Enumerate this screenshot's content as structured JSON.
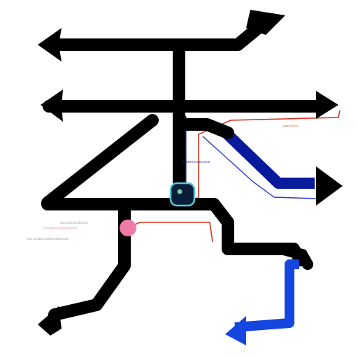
{
  "colors": {
    "background": "#ffffff",
    "main_stroke": "#000000",
    "navy_route": "#0a1a9c",
    "blue_route": "#1646e0",
    "red_thin": "#d8321c",
    "cyan_ring": "#59c8d8",
    "pink_node": "#f07aa8",
    "label_orange": "#e07020",
    "label_gray": "#9a9aa8",
    "label_pink": "#e88aa8",
    "label_navy": "#3a4a9a"
  },
  "labels": {
    "orange_tag": "ᴄᴇᴇᴄᴄᴇᴄᴄ",
    "center_tag": "ᴄ ʟᴇᴇᴇᴄᴄᴄᴇᴇᴄᴇᴄᴇ",
    "left_tag_1": "ᴄᴇᴄᴇᴄᴇᴄᴄᴇᴄᴇᴄᴄᴇᴄ",
    "left_tag_2": "ᴄᴄᴇᴇᴄᴇᴄᴇᴄᴄᴇᴄᴇᴄᴇᴄᴄᴇ",
    "left_tag_3": "ᴄᴇᴇ ᴄᴇᴄᴇᴇᴄᴄᴇᴄᴇᴄᴇᴄᴇᴄᴇᴄᴇᴄ"
  },
  "icons": {
    "junction": "junction-node-icon",
    "pink": "pink-node-icon",
    "arrow": "arrowhead-icon"
  }
}
